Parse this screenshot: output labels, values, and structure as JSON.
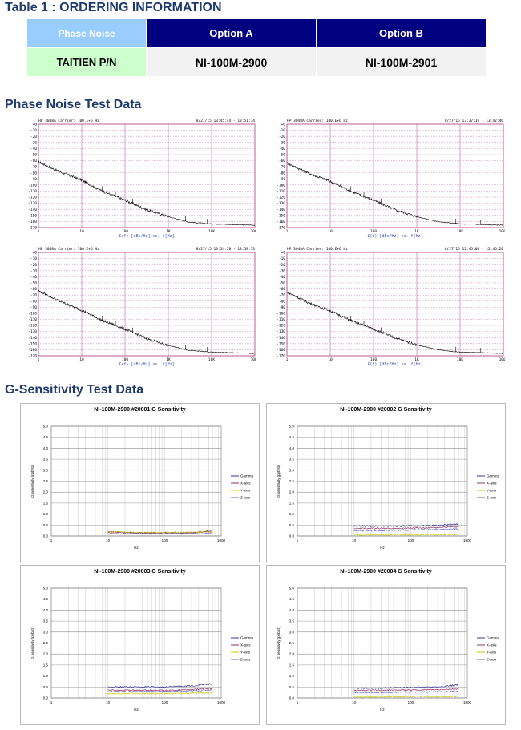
{
  "table1": {
    "title": "Table 1 : ORDERING INFORMATION",
    "header": [
      "Phase Noise",
      "Option A",
      "Option B"
    ],
    "row": [
      "TAITIEN P/N",
      "NI-100M-2900",
      "NI-100M-2901"
    ]
  },
  "phase_noise": {
    "title": "Phase Noise Test Data",
    "plots": [
      {
        "header_left": "HP 3048A  Carrier: 100.E+6 Hz",
        "header_right": "8/27/15  13:45:44 - 13:51:14",
        "footer": "£(f) [dBc/Hz] vs. f[Hz]"
      },
      {
        "header_left": "HP 3048A  Carrier: 100.E+6 Hz",
        "header_right": "8/27/15  13:37:19 - 13:42:46",
        "footer": "£(f) [dBc/Hz] vs. f[Hz]"
      },
      {
        "header_left": "HP 3048A  Carrier: 100.E+6 Hz",
        "header_right": "8/27/15  13:54:58 - 13:58:13",
        "footer": "£(f) [dBc/Hz] vs. f[Hz]"
      },
      {
        "header_left": "HP 3048A  Carrier: 100.E+6 Hz",
        "header_right": "8/27/15  12:45:06 - 12:46:20",
        "footer": "£(f) [dBc/Hz] vs. f[Hz]"
      }
    ]
  },
  "g_sensitivity": {
    "title": "G-Sensitivity Test Data",
    "plots": [
      {
        "title": "NI-100M-2900 #20001 G Sensitivity"
      },
      {
        "title": "NI-100M-2900 #20002 G Sensitivity"
      },
      {
        "title": "NI-100M-2900 #20003 G Sensitivity"
      },
      {
        "title": "NI-100M-2900 #20004 G Sensitivity"
      }
    ]
  },
  "chart_data": [
    {
      "type": "line",
      "subtitle": "HP 3048A Carrier: 100.E+6 Hz",
      "xlabel": "£(f) [dBc/Hz] vs. f[Hz]",
      "x_scale": "log",
      "xlim": [
        1,
        100000
      ],
      "ylim": [
        -170,
        0
      ],
      "x_ticks": [
        "1",
        "10",
        "100",
        "1K",
        "10K",
        "100K"
      ],
      "y_ticks": [
        "+0",
        "-10",
        "-20",
        "-30",
        "-40",
        "-50",
        "-60",
        "-70",
        "-80",
        "-90",
        "-100",
        "-110",
        "-120",
        "-130",
        "-140",
        "-150",
        "-160",
        "-170"
      ],
      "series": [
        {
          "x": [
            1,
            3,
            10,
            30,
            100,
            300,
            1000,
            3000,
            10000,
            30000,
            100000
          ],
          "values": [
            -62,
            -78,
            -92,
            -110,
            -125,
            -140,
            -152,
            -161,
            -164,
            -165,
            -166
          ]
        }
      ]
    },
    {
      "type": "line",
      "subtitle": "HP 3048A Carrier: 100.E+6 Hz",
      "xlabel": "£(f) [dBc/Hz] vs. f[Hz]",
      "x_scale": "log",
      "xlim": [
        1,
        100000
      ],
      "ylim": [
        -170,
        0
      ],
      "x_ticks": [
        "1",
        "10",
        "100",
        "1K",
        "10K",
        "100K"
      ],
      "y_ticks": [
        "+0",
        "-10",
        "-20",
        "-30",
        "-40",
        "-50",
        "-60",
        "-70",
        "-80",
        "-90",
        "-100",
        "-110",
        "-120",
        "-130",
        "-140",
        "-150",
        "-160",
        "-170"
      ],
      "series": [
        {
          "x": [
            1,
            3,
            10,
            30,
            100,
            300,
            1000,
            3000,
            10000,
            30000,
            100000
          ],
          "values": [
            -64,
            -80,
            -94,
            -110,
            -125,
            -140,
            -152,
            -160,
            -164,
            -165,
            -166
          ]
        }
      ]
    },
    {
      "type": "line",
      "subtitle": "HP 3048A Carrier: 100.E+6 Hz",
      "xlabel": "£(f) [dBc/Hz] vs. f[Hz]",
      "x_scale": "log",
      "xlim": [
        1,
        100000
      ],
      "ylim": [
        -170,
        0
      ],
      "x_ticks": [
        "1",
        "10",
        "100",
        "1K",
        "10K",
        "100K"
      ],
      "y_ticks": [
        "+0",
        "-10",
        "-20",
        "-30",
        "-40",
        "-50",
        "-60",
        "-70",
        "-80",
        "-90",
        "-100",
        "-110",
        "-120",
        "-130",
        "-140",
        "-150",
        "-160",
        "-170"
      ],
      "series": [
        {
          "x": [
            1,
            3,
            10,
            30,
            100,
            300,
            1000,
            3000,
            10000,
            30000,
            100000
          ],
          "values": [
            -63,
            -80,
            -95,
            -112,
            -126,
            -141,
            -153,
            -161,
            -164,
            -165,
            -166
          ]
        }
      ]
    },
    {
      "type": "line",
      "subtitle": "HP 3048A Carrier: 100.E+6 Hz",
      "xlabel": "£(f) [dBc/Hz] vs. f[Hz]",
      "x_scale": "log",
      "xlim": [
        1,
        100000
      ],
      "ylim": [
        -170,
        0
      ],
      "x_ticks": [
        "1",
        "10",
        "100",
        "1K",
        "10K",
        "100K"
      ],
      "y_ticks": [
        "+0",
        "-10",
        "-20",
        "-30",
        "-40",
        "-50",
        "-60",
        "-70",
        "-80",
        "-90",
        "-100",
        "-110",
        "-120",
        "-130",
        "-140",
        "-150",
        "-160",
        "-170"
      ],
      "series": [
        {
          "x": [
            1,
            3,
            10,
            30,
            100,
            300,
            1000,
            3000,
            10000,
            30000,
            100000
          ],
          "values": [
            -65,
            -82,
            -96,
            -112,
            -126,
            -140,
            -152,
            -160,
            -164,
            -165,
            -166
          ]
        }
      ]
    },
    {
      "type": "line",
      "title": "NI-100M-2900 #20001 G Sensitivity",
      "xlabel": "Hz",
      "ylabel": "G sensitivity (ppb/G)",
      "x_scale": "log",
      "xlim": [
        1,
        1000
      ],
      "ylim": [
        0,
        5
      ],
      "x_ticks": [
        "1",
        "10",
        "100",
        "1000"
      ],
      "y_ticks": [
        "0.0",
        "0.5",
        "1.0",
        "1.5",
        "2.0",
        "2.5",
        "3.0",
        "3.5",
        "4.0",
        "4.5",
        "5.0"
      ],
      "series": [
        {
          "name": "Gamma",
          "color": "#333399",
          "x": [
            10,
            30,
            100,
            300,
            700
          ],
          "values": [
            0.2,
            0.15,
            0.15,
            0.15,
            0.25
          ]
        },
        {
          "name": "X-axis",
          "color": "#993366",
          "x": [
            10,
            30,
            100,
            300,
            700
          ],
          "values": [
            0.18,
            0.14,
            0.14,
            0.14,
            0.2
          ]
        },
        {
          "name": "Y-axis",
          "color": "#cccc00",
          "x": [
            10,
            30,
            100,
            300,
            700
          ],
          "values": [
            0.2,
            0.16,
            0.16,
            0.16,
            0.22
          ]
        },
        {
          "name": "Z-axis",
          "color": "#6666cc",
          "x": [
            10,
            30,
            100,
            300,
            700
          ],
          "values": [
            0.1,
            0.1,
            0.1,
            0.1,
            0.12
          ]
        }
      ]
    },
    {
      "type": "line",
      "title": "NI-100M-2900 #20002 G Sensitivity",
      "xlabel": "Hz",
      "ylabel": "G sensitivity (ppb/G)",
      "x_scale": "log",
      "xlim": [
        1,
        1000
      ],
      "ylim": [
        0,
        5
      ],
      "x_ticks": [
        "1",
        "10",
        "100",
        "1000"
      ],
      "y_ticks": [
        "0.0",
        "0.5",
        "1.0",
        "1.5",
        "2.0",
        "2.5",
        "3.0",
        "3.5",
        "4.0",
        "4.5",
        "5.0"
      ],
      "series": [
        {
          "name": "Gamma",
          "color": "#333399",
          "x": [
            10,
            30,
            100,
            300,
            700
          ],
          "values": [
            0.45,
            0.45,
            0.45,
            0.48,
            0.55
          ]
        },
        {
          "name": "X-axis",
          "color": "#993366",
          "x": [
            10,
            30,
            100,
            300,
            700
          ],
          "values": [
            0.35,
            0.35,
            0.36,
            0.38,
            0.42
          ]
        },
        {
          "name": "Y-axis",
          "color": "#cccc00",
          "x": [
            10,
            30,
            100,
            300,
            700
          ],
          "values": [
            0.05,
            0.05,
            0.06,
            0.06,
            0.07
          ]
        },
        {
          "name": "Z-axis",
          "color": "#6666cc",
          "x": [
            10,
            30,
            100,
            300,
            700
          ],
          "values": [
            0.25,
            0.25,
            0.28,
            0.3,
            0.32
          ]
        }
      ]
    },
    {
      "type": "line",
      "title": "NI-100M-2900 #20003 G Sensitivity",
      "xlabel": "Hz",
      "ylabel": "G sensitivity (ppb/G)",
      "x_scale": "log",
      "xlim": [
        1,
        1000
      ],
      "ylim": [
        0,
        5
      ],
      "x_ticks": [
        "1",
        "10",
        "100",
        "1000"
      ],
      "y_ticks": [
        "0.0",
        "0.5",
        "1.0",
        "1.5",
        "2.0",
        "2.5",
        "3.0",
        "3.5",
        "4.0",
        "4.5",
        "5.0"
      ],
      "series": [
        {
          "name": "Gamma",
          "color": "#333399",
          "x": [
            10,
            30,
            100,
            300,
            700
          ],
          "values": [
            0.5,
            0.5,
            0.5,
            0.55,
            0.65
          ]
        },
        {
          "name": "X-axis",
          "color": "#993366",
          "x": [
            10,
            30,
            100,
            300,
            700
          ],
          "values": [
            0.35,
            0.35,
            0.35,
            0.38,
            0.45
          ]
        },
        {
          "name": "Y-axis",
          "color": "#cccc00",
          "x": [
            10,
            30,
            100,
            300,
            700
          ],
          "values": [
            0.2,
            0.2,
            0.2,
            0.22,
            0.25
          ]
        },
        {
          "name": "Z-axis",
          "color": "#6666cc",
          "x": [
            10,
            30,
            100,
            300,
            700
          ],
          "values": [
            0.3,
            0.3,
            0.3,
            0.32,
            0.38
          ]
        }
      ]
    },
    {
      "type": "line",
      "title": "NI-100M-2900 #20004 G Sensitivity",
      "xlabel": "Hz",
      "ylabel": "G sensitivity (ppb/G)",
      "x_scale": "log",
      "xlim": [
        1,
        1000
      ],
      "ylim": [
        0,
        5
      ],
      "x_ticks": [
        "1",
        "10",
        "100",
        "1000"
      ],
      "y_ticks": [
        "0.0",
        "0.5",
        "1.0",
        "1.5",
        "2.0",
        "2.5",
        "3.0",
        "3.5",
        "4.0",
        "4.5",
        "5.0"
      ],
      "series": [
        {
          "name": "Gamma",
          "color": "#333399",
          "x": [
            10,
            30,
            100,
            300,
            700
          ],
          "values": [
            0.45,
            0.45,
            0.48,
            0.5,
            0.6
          ]
        },
        {
          "name": "X-axis",
          "color": "#993366",
          "x": [
            10,
            30,
            100,
            300,
            700
          ],
          "values": [
            0.35,
            0.35,
            0.36,
            0.38,
            0.42
          ]
        },
        {
          "name": "Y-axis",
          "color": "#cccc00",
          "x": [
            10,
            30,
            100,
            300,
            700
          ],
          "values": [
            0.05,
            0.05,
            0.06,
            0.06,
            0.07
          ]
        },
        {
          "name": "Z-axis",
          "color": "#6666cc",
          "x": [
            10,
            30,
            100,
            300,
            700
          ],
          "values": [
            0.25,
            0.25,
            0.27,
            0.28,
            0.3
          ]
        }
      ]
    }
  ]
}
